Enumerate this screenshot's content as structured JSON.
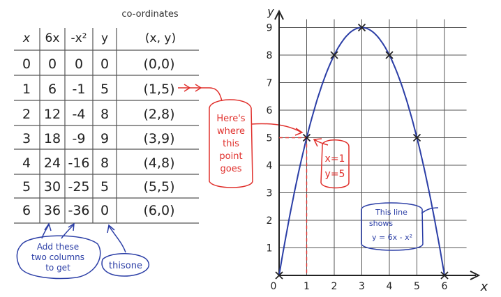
{
  "table": {
    "heading": "co-ordinates",
    "headers": [
      "x",
      "6x",
      "-x²",
      "y",
      "(x, y)"
    ],
    "rows": [
      [
        "0",
        "0",
        "0",
        "0",
        "(0,0)"
      ],
      [
        "1",
        "6",
        "-1",
        "5",
        "(1,5)"
      ],
      [
        "2",
        "12",
        "-4",
        "8",
        "(2,8)"
      ],
      [
        "3",
        "18",
        "-9",
        "9",
        "(3,9)"
      ],
      [
        "4",
        "24",
        "-16",
        "8",
        "(4,8)"
      ],
      [
        "5",
        "30",
        "-25",
        "5",
        "(5,5)"
      ],
      [
        "6",
        "36",
        "-36",
        "0",
        "(6,0)"
      ]
    ]
  },
  "notes": {
    "add_columns": [
      "Add these",
      "two columns",
      "to get"
    ],
    "this_one": "thisone",
    "point_callout": [
      "Here's",
      "where",
      "this",
      "point",
      "goes"
    ],
    "point_x": "x=1",
    "point_y": "y=5",
    "line_note": [
      "This line",
      "shows",
      "y = 6x - x²"
    ]
  },
  "colors": {
    "pencil": "#333333",
    "blue_ink": "#2b3ea6",
    "red_ink": "#e0302c",
    "grid": "#555555"
  },
  "chart_data": {
    "type": "line",
    "xlabel": "x",
    "ylabel": "y",
    "xlim": [
      0,
      6.9
    ],
    "ylim": [
      0,
      9.5
    ],
    "x_ticks": [
      "0",
      "1",
      "2",
      "3",
      "4",
      "5",
      "6"
    ],
    "y_ticks": [
      "1",
      "2",
      "3",
      "4",
      "5",
      "6",
      "7",
      "8",
      "9"
    ],
    "grid": true,
    "series": [
      {
        "equation": "y = 6x - x²",
        "x": [
          0,
          1,
          2,
          3,
          4,
          5,
          6
        ],
        "y": [
          0,
          5,
          8,
          9,
          8,
          5,
          0
        ]
      }
    ],
    "highlight_point": {
      "x": 1,
      "y": 5
    }
  }
}
